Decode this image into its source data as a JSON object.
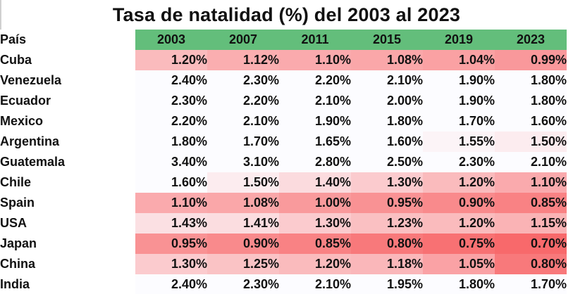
{
  "title": "Tasa de natalidad (%) del 2003 al 2023",
  "colors": {
    "header_green": "#63be7b",
    "low_red": "#f8696b",
    "high_white": "#fcfcff"
  },
  "chart_data": {
    "type": "heatmap",
    "title": "Tasa de natalidad (%) del 2003 al 2023",
    "row_header": "País",
    "columns": [
      "2003",
      "2007",
      "2011",
      "2015",
      "2019",
      "2023"
    ],
    "rows": [
      "Cuba",
      "Venezuela",
      "Ecuador",
      "Mexico",
      "Argentina",
      "Guatemala",
      "Chile",
      "Spain",
      "USA",
      "Japan",
      "China",
      "India"
    ],
    "values": [
      [
        1.2,
        1.12,
        1.1,
        1.08,
        1.04,
        0.99
      ],
      [
        2.4,
        2.3,
        2.2,
        2.1,
        1.9,
        1.8
      ],
      [
        2.3,
        2.2,
        2.1,
        2.0,
        1.9,
        1.8
      ],
      [
        2.2,
        2.1,
        1.9,
        1.8,
        1.7,
        1.6
      ],
      [
        1.8,
        1.7,
        1.65,
        1.6,
        1.55,
        1.5
      ],
      [
        3.4,
        3.1,
        2.8,
        2.5,
        2.3,
        2.1
      ],
      [
        1.6,
        1.5,
        1.4,
        1.3,
        1.2,
        1.1
      ],
      [
        1.1,
        1.08,
        1.0,
        0.95,
        0.9,
        0.85
      ],
      [
        1.43,
        1.41,
        1.3,
        1.23,
        1.2,
        1.15
      ],
      [
        0.95,
        0.9,
        0.85,
        0.8,
        0.75,
        0.7
      ],
      [
        1.3,
        1.25,
        1.2,
        1.18,
        1.05,
        0.8
      ],
      [
        2.4,
        2.3,
        2.1,
        1.95,
        1.8,
        1.7
      ]
    ],
    "labels": [
      [
        "1.20%",
        "1.12%",
        "1.10%",
        "1.08%",
        "1.04%",
        "0.99%"
      ],
      [
        "2.40%",
        "2.30%",
        "2.20%",
        "2.10%",
        "1.90%",
        "1.80%"
      ],
      [
        "2.30%",
        "2.20%",
        "2.10%",
        "2.00%",
        "1.90%",
        "1.80%"
      ],
      [
        "2.20%",
        "2.10%",
        "1.90%",
        "1.80%",
        "1.70%",
        "1.60%"
      ],
      [
        "1.80%",
        "1.70%",
        "1.65%",
        "1.60%",
        "1.55%",
        "1.50%"
      ],
      [
        "3.40%",
        "3.10%",
        "2.80%",
        "2.50%",
        "2.30%",
        "2.10%"
      ],
      [
        "1.60%",
        "1.50%",
        "1.40%",
        "1.30%",
        "1.20%",
        "1.10%"
      ],
      [
        "1.10%",
        "1.08%",
        "1.00%",
        "0.95%",
        "0.90%",
        "0.85%"
      ],
      [
        "1.43%",
        "1.41%",
        "1.30%",
        "1.23%",
        "1.20%",
        "1.15%"
      ],
      [
        "0.95%",
        "0.90%",
        "0.85%",
        "0.80%",
        "0.75%",
        "0.70%"
      ],
      [
        "1.30%",
        "1.25%",
        "1.20%",
        "1.18%",
        "1.05%",
        "0.80%"
      ],
      [
        "2.40%",
        "2.30%",
        "2.10%",
        "1.95%",
        "1.80%",
        "1.70%"
      ]
    ],
    "color_scale": {
      "min_color": "#f8696b",
      "max_color": "#fcfcff",
      "domain": [
        0.7,
        1.6
      ]
    }
  }
}
